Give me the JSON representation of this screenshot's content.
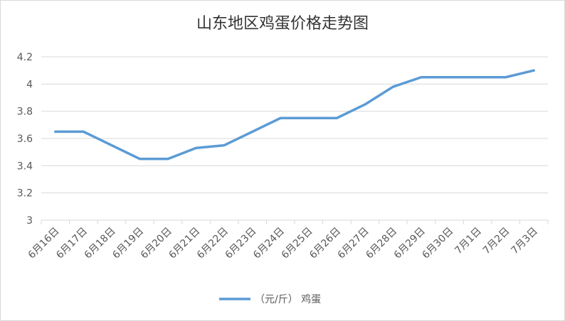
{
  "chart_data": {
    "type": "line",
    "title": "山东地区鸡蛋价格走势图",
    "categories": [
      "6月16日",
      "6月17日",
      "6月18日",
      "6月19日",
      "6月20日",
      "6月21日",
      "6月22日",
      "6月23日",
      "6月24日",
      "6月25日",
      "6月26日",
      "6月27日",
      "6月28日",
      "6月29日",
      "6月30日",
      "7月1日",
      "7月2日",
      "7月3日"
    ],
    "series": [
      {
        "name": "（元/斤） 鸡蛋",
        "color": "#5b9bd5",
        "values": [
          3.65,
          3.65,
          3.55,
          3.45,
          3.45,
          3.53,
          3.55,
          3.65,
          3.75,
          3.75,
          3.75,
          3.85,
          3.98,
          4.05,
          4.05,
          4.05,
          4.05,
          4.1
        ]
      }
    ],
    "ylim": [
      3,
      4.2
    ],
    "yticks": [
      3,
      3.2,
      3.4,
      3.6,
      3.8,
      4,
      4.2
    ],
    "grid": true,
    "legend": "bottom"
  }
}
